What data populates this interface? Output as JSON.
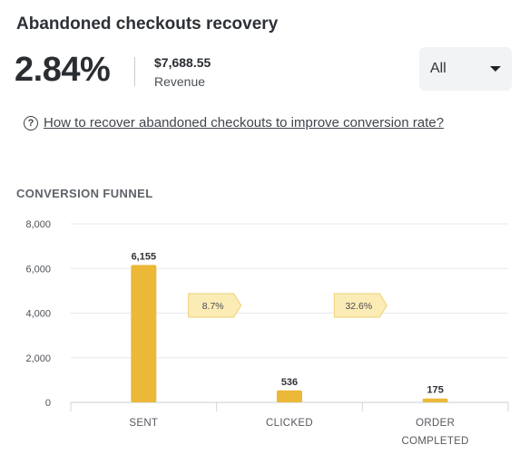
{
  "card": {
    "title": "Abandoned checkouts recovery",
    "conversion_rate": "2.84%",
    "revenue_value": "$7,688.55",
    "revenue_label": "Revenue",
    "filter": {
      "selected": "All"
    },
    "help_link": "How to recover abandoned checkouts to improve conversion rate?",
    "section_label": "CONVERSION FUNNEL"
  },
  "colors": {
    "bar": "#ebb838",
    "step_badge": "#fbecb5",
    "step_badge_border": "#efcf75",
    "grid": "#e6e8eb"
  },
  "icons": {
    "help": "question-circle-icon",
    "dropdown": "caret-down-icon"
  },
  "chart_data": {
    "type": "bar",
    "categories": [
      "SENT",
      "CLICKED",
      "ORDER COMPLETED"
    ],
    "category_lines": [
      [
        "SENT"
      ],
      [
        "CLICKED"
      ],
      [
        "ORDER",
        "COMPLETED"
      ]
    ],
    "values": [
      6155,
      536,
      175
    ],
    "data_labels": [
      "6,155",
      "536",
      "175"
    ],
    "step_rates": [
      "8.7%",
      "32.6%"
    ],
    "yticks": [
      0,
      2000,
      4000,
      6000,
      8000
    ],
    "ytick_labels": [
      "0",
      "2,000",
      "4,000",
      "6,000",
      "8,000"
    ],
    "ylim": [
      0,
      8000
    ],
    "grid": true
  }
}
